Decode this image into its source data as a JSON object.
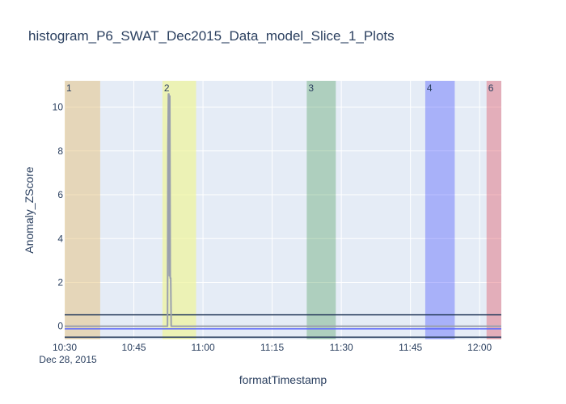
{
  "chart_data": {
    "type": "line",
    "title": "histogram_P6_SWAT_Dec2015_Data_model_Slice_1_Plots",
    "xlabel": "formatTimestamp",
    "ylabel": "Anomaly_ZScore",
    "x_date_label": "Dec 28, 2015",
    "x_ticks": [
      "10:30",
      "10:45",
      "11:00",
      "11:15",
      "11:30",
      "11:45",
      "12:00"
    ],
    "x_tick_minutes": [
      0,
      15,
      30,
      45,
      60,
      75,
      90
    ],
    "xlim_minutes": [
      0,
      94.7
    ],
    "y_ticks": [
      0,
      2,
      4,
      6,
      8,
      10
    ],
    "ylim": [
      -0.6,
      11.2
    ],
    "grid": true,
    "colors": {
      "plot_bg": "#e5ecf6",
      "grid": "#ffffff",
      "series": "#9aa0ad",
      "threshold": "#2a3f5f",
      "mean": "#636efa"
    },
    "bands": [
      {
        "label": "1",
        "start": 0.0,
        "end": 7.7,
        "color": "#e5bc6f",
        "opacity": 0.45
      },
      {
        "label": "2",
        "start": 21.2,
        "end": 28.5,
        "color": "#f0f59a",
        "opacity": 0.7
      },
      {
        "label": "3",
        "start": 52.5,
        "end": 58.8,
        "color": "#2e8b3a",
        "opacity": 0.3
      },
      {
        "label": "4",
        "start": 78.2,
        "end": 84.6,
        "color": "#2f3bff",
        "opacity": 0.33
      },
      {
        "label": "6",
        "start": 91.5,
        "end": 94.7,
        "color": "#e04a5a",
        "opacity": 0.38
      }
    ],
    "thresholds": [
      0.52,
      -0.5
    ],
    "mean_line": -0.12,
    "series": [
      {
        "x": [
          0,
          20.8,
          22.3,
          22.4,
          22.5,
          22.6,
          22.7,
          22.8,
          22.9,
          23.0,
          23.1,
          23.2,
          23.3,
          94.7
        ],
        "y": [
          0,
          0,
          0,
          8.3,
          10.6,
          10.6,
          2.3,
          10.5,
          2.2,
          2.2,
          0,
          0,
          0,
          0
        ]
      }
    ]
  }
}
